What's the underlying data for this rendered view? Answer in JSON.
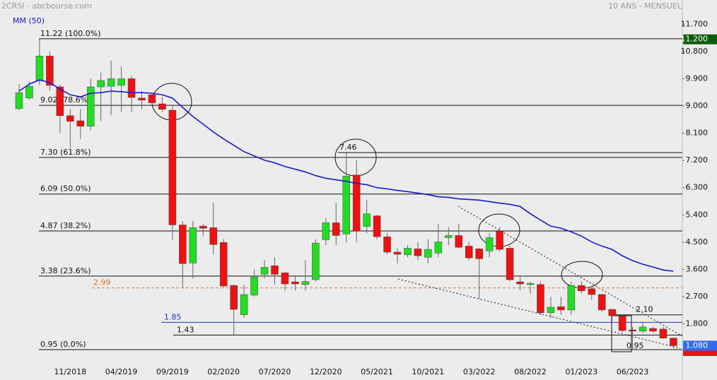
{
  "chart_data": {
    "type": "candlestick",
    "title": "2CRSI - abcbourse.com",
    "subtitle": "10 ANS - MENSUEL",
    "categories": [
      null,
      null,
      null,
      null,
      null,
      "11/2018",
      null,
      null,
      null,
      null,
      "04/2019",
      null,
      null,
      null,
      null,
      "09/2019",
      null,
      null,
      null,
      null,
      "02/2020",
      null,
      null,
      null,
      null,
      "07/2020",
      null,
      null,
      null,
      null,
      "12/2020",
      null,
      null,
      null,
      null,
      "05/2021",
      null,
      null,
      null,
      null,
      "10/2021",
      null,
      null,
      null,
      null,
      "03/2022",
      null,
      null,
      null,
      null,
      "08/2022",
      null,
      null,
      null,
      null,
      "01/2023",
      null,
      null,
      null,
      null,
      "06/2023",
      null,
      null,
      null,
      null
    ],
    "open": [
      8.91,
      9.26,
      9.84,
      10.65,
      9.63,
      8.68,
      8.51,
      8.33,
      9.63,
      9.65,
      9.68,
      9.9,
      9.26,
      9.37,
      9.07,
      8.86,
      5.07,
      3.81,
      5.03,
      4.98,
      4.49,
      3.07,
      2.1,
      2.75,
      3.44,
      3.72,
      3.49,
      3.19,
      3.1,
      3.26,
      4.58,
      5.14,
      4.77,
      6.72,
      5.02,
      5.37,
      4.68,
      4.17,
      4.08,
      4.28,
      4.0,
      4.14,
      4.65,
      4.72,
      4.37,
      4.28,
      4.21,
      4.86,
      4.3,
      3.19,
      3.1,
      3.1,
      2.17,
      2.37,
      2.26,
      3.07,
      2.96,
      2.77,
      2.28,
      2.05,
      1.6,
      1.56,
      1.65,
      1.63,
      1.33
    ],
    "high": [
      9.72,
      9.8,
      11.22,
      10.8,
      9.7,
      8.9,
      8.9,
      9.9,
      10.1,
      10.5,
      10.3,
      10.0,
      9.5,
      9.4,
      9.3,
      9.0,
      5.2,
      5.2,
      5.1,
      5.8,
      4.6,
      3.1,
      3.1,
      3.6,
      3.9,
      4.0,
      3.5,
      3.4,
      3.9,
      4.6,
      5.3,
      5.8,
      7.46,
      7.2,
      5.9,
      5.4,
      4.8,
      4.3,
      4.4,
      4.5,
      4.6,
      5.1,
      5.0,
      5.1,
      4.5,
      4.3,
      4.8,
      5.0,
      4.4,
      3.4,
      3.2,
      3.2,
      2.7,
      2.7,
      3.2,
      3.2,
      3.0,
      2.8,
      2.3,
      2.1,
      1.7,
      1.85,
      1.7,
      1.7,
      1.35
    ],
    "low": [
      8.86,
      9.2,
      9.7,
      9.5,
      8.1,
      7.6,
      7.9,
      8.2,
      8.5,
      8.7,
      8.8,
      8.8,
      8.9,
      9.0,
      8.8,
      4.56,
      2.99,
      3.3,
      4.7,
      4.1,
      3.0,
      1.43,
      2.0,
      2.7,
      3.3,
      3.1,
      2.9,
      2.9,
      2.9,
      3.2,
      4.4,
      4.4,
      4.5,
      4.5,
      4.8,
      4.6,
      4.1,
      3.8,
      4.0,
      3.9,
      3.8,
      4.0,
      4.4,
      4.3,
      3.9,
      2.63,
      4.0,
      4.2,
      3.2,
      2.9,
      2.8,
      2.1,
      2.0,
      2.1,
      2.1,
      2.8,
      2.6,
      2.2,
      1.9,
      1.5,
      0.95,
      1.5,
      1.5,
      1.3,
      1.0
    ],
    "close": [
      9.44,
      9.65,
      10.65,
      9.68,
      8.68,
      8.49,
      8.33,
      9.63,
      9.84,
      9.9,
      9.9,
      9.28,
      9.19,
      9.1,
      8.89,
      5.07,
      3.79,
      4.98,
      4.96,
      4.42,
      3.05,
      2.28,
      2.77,
      3.35,
      3.67,
      3.44,
      3.12,
      3.12,
      3.2,
      4.47,
      5.14,
      4.72,
      6.68,
      4.86,
      5.44,
      4.68,
      4.17,
      4.1,
      4.3,
      4.05,
      4.26,
      4.51,
      4.72,
      4.33,
      3.98,
      3.95,
      4.65,
      4.26,
      3.26,
      3.12,
      3.14,
      2.17,
      2.35,
      2.26,
      3.07,
      2.89,
      2.77,
      2.26,
      2.07,
      1.58,
      1.56,
      1.7,
      1.56,
      1.33,
      1.08
    ],
    "up_color": "#22dd22",
    "down_color": "#ee1111",
    "series": [
      {
        "name": "MM (50)",
        "color": "#1a1ac8",
        "values": [
          9.49,
          9.72,
          9.86,
          9.77,
          9.56,
          9.37,
          9.3,
          9.42,
          9.44,
          9.49,
          9.47,
          9.44,
          9.44,
          9.42,
          9.37,
          9.26,
          8.95,
          8.65,
          8.4,
          8.14,
          7.91,
          7.7,
          7.49,
          7.35,
          7.21,
          7.12,
          7.0,
          6.91,
          6.82,
          6.7,
          6.61,
          6.56,
          6.51,
          6.44,
          6.4,
          6.3,
          6.26,
          6.21,
          6.17,
          6.12,
          6.07,
          6.0,
          5.98,
          5.93,
          5.91,
          5.89,
          5.84,
          5.79,
          5.75,
          5.68,
          5.44,
          5.23,
          5.03,
          4.96,
          4.84,
          4.7,
          4.51,
          4.37,
          4.26,
          4.05,
          3.89,
          3.77,
          3.68,
          3.58,
          3.54
        ]
      }
    ],
    "levels": [
      {
        "value": 11.22,
        "label": "11.22  (100.0%)",
        "color": "#111111"
      },
      {
        "value": 9.02,
        "label": "9.02  (78.6%)",
        "color": "#111111"
      },
      {
        "value": 7.3,
        "label": "7.30  (61.8%)",
        "color": "#111111"
      },
      {
        "value": 6.09,
        "label": "6.09  (50.0%)",
        "color": "#111111"
      },
      {
        "value": 4.87,
        "label": "4.87  (38.2%)",
        "color": "#111111"
      },
      {
        "value": 3.38,
        "label": "3.38  (23.6%)",
        "color": "#111111"
      },
      {
        "value": 0.95,
        "label": "0.95  (0.0%)",
        "color": "#111111"
      },
      {
        "value": 7.46,
        "label": "7.46",
        "color": "#111111"
      },
      {
        "value": 2.99,
        "label": "2.99",
        "color": "#d8782a"
      },
      {
        "value": 1.85,
        "label": "1.85",
        "color": "#2233bb"
      },
      {
        "value": 1.43,
        "label": "1.43",
        "color": "#111111"
      },
      {
        "value": 2.1,
        "label": "2.10",
        "color": "#111111"
      },
      {
        "value": 0.95,
        "label": "0.95",
        "color": "#111111"
      }
    ],
    "ylim": [
      0.6,
      12.5
    ],
    "yticks": [
      {
        "value": 11.7,
        "label": "11.700"
      },
      {
        "value": 10.8,
        "label": "10.800"
      },
      {
        "value": 9.9,
        "label": "9.900"
      },
      {
        "value": 9.0,
        "label": "9.000"
      },
      {
        "value": 8.1,
        "label": "8.100"
      },
      {
        "value": 7.2,
        "label": "7.200"
      },
      {
        "value": 6.3,
        "label": "6.300"
      },
      {
        "value": 5.4,
        "label": "5.400"
      },
      {
        "value": 4.5,
        "label": "4.500"
      },
      {
        "value": 3.6,
        "label": "3.600"
      },
      {
        "value": 2.7,
        "label": "2.700"
      },
      {
        "value": 1.8,
        "label": "1.800"
      }
    ],
    "price_markers": [
      {
        "value": 11.2,
        "label": "11.200",
        "color": "#0b5d0b"
      },
      {
        "value": 1.08,
        "label": "1.080",
        "color": "#2f6cf0"
      }
    ]
  }
}
